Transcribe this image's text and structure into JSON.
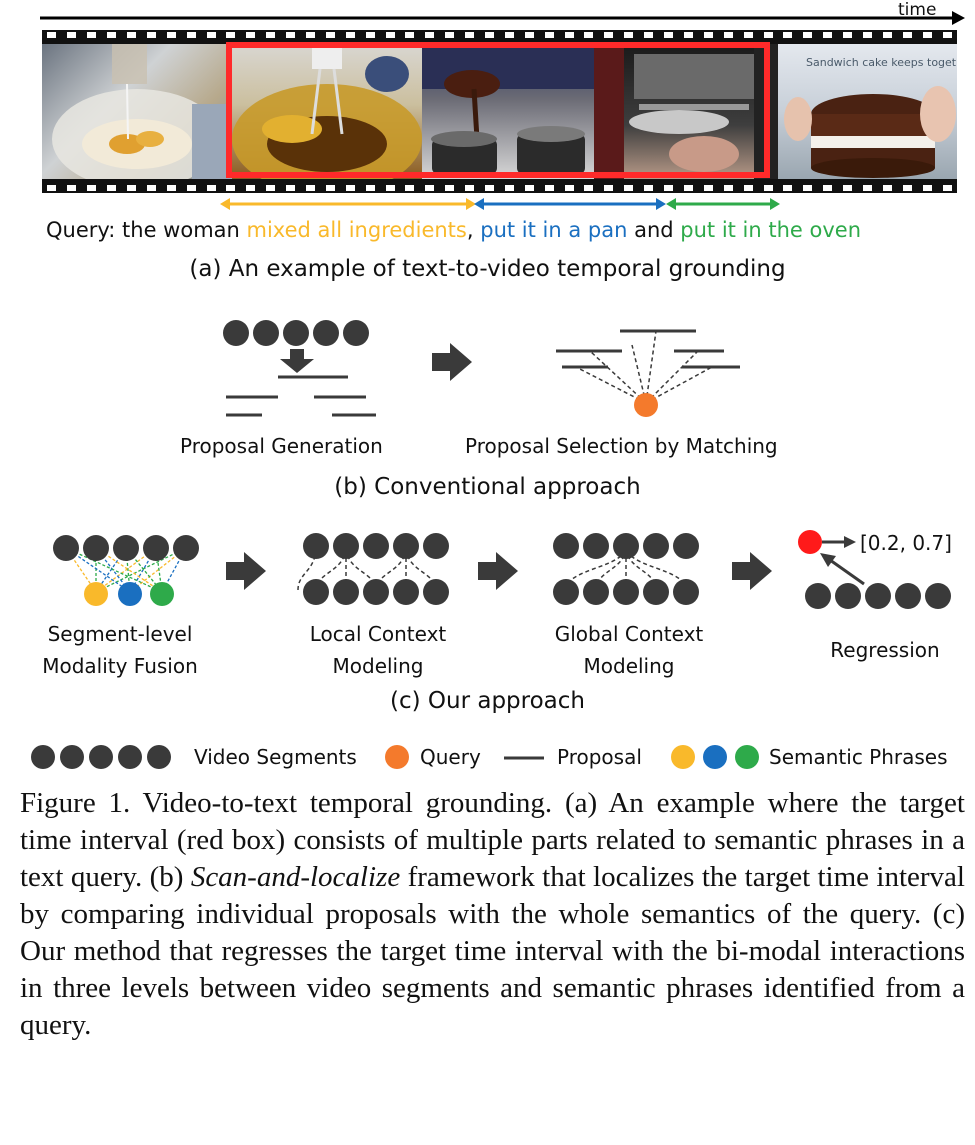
{
  "timeline": {
    "label": "time"
  },
  "part_a": {
    "query_prefix": "Query: the woman ",
    "phrase1": "mixed all ingredients",
    "sep1": ", ",
    "phrase2": "put it in a pan",
    "sep2": " and ",
    "phrase3": "put it in the oven",
    "caption": "(a) An example of text-to-video temporal grounding",
    "frame_overlay_text": "Sandwich cake keeps together"
  },
  "part_b": {
    "label_left": "Proposal Generation",
    "label_right": "Proposal Selection by Matching",
    "caption": "(b) Conventional approach"
  },
  "part_c": {
    "stage1_line1": "Segment-level",
    "stage1_line2": "Modality Fusion",
    "stage2_line1": "Local Context",
    "stage2_line2": "Modeling",
    "stage3_line1": "Global Context",
    "stage3_line2": "Modeling",
    "stage4_label": "Regression",
    "output": "[0.2, 0.7]",
    "caption": "(c) Our approach"
  },
  "legend": {
    "video_segments": "Video Segments",
    "query": "Query",
    "proposal": "Proposal",
    "semantic_phrases": "Semantic Phrases"
  },
  "colors": {
    "segment": "#3a3a3a",
    "query": "#f47a2c",
    "phrase_yellow": "#f9b92b",
    "phrase_blue": "#1a6fc0",
    "phrase_green": "#2eaa4a",
    "red_box": "#ff2a2a",
    "regression_dot": "#ff1a1a"
  },
  "figure_caption": {
    "label": "Figure 1.",
    "intro": " Video-to-text temporal grounding.  (a) An example where the target time interval (red box) consists of multiple parts related to semantic phrases in a text query. (b) ",
    "italic": "Scan-and-localize",
    "rest": " framework that localizes the target time interval by comparing individual proposals with the whole semantics of the query. (c) Our method that regresses the target time interval with the bi-modal interactions in three levels between video segments and semantic phrases identified from a query."
  }
}
